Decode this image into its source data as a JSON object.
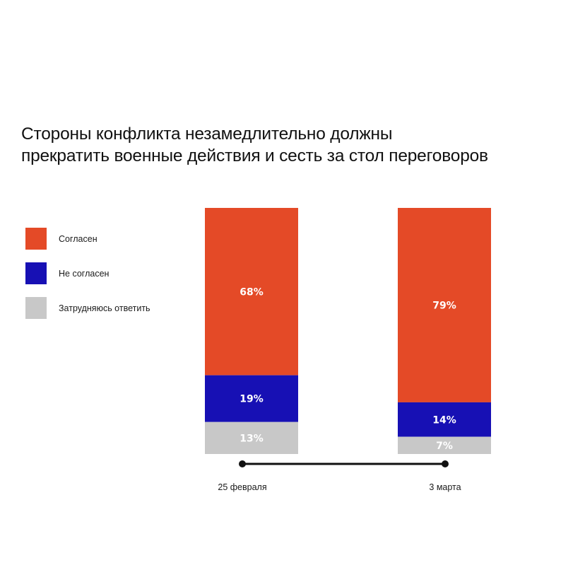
{
  "title_lines": [
    "Стороны конфликта незамедлительно должны",
    "прекратить военные действия и сесть за стол переговоров"
  ],
  "legend": [
    {
      "label": "Согласен",
      "color": "#e44a27"
    },
    {
      "label": "Не согласен",
      "color": "#1710b4"
    },
    {
      "label": "Затрудняюсь ответить",
      "color": "#c8c8c8"
    }
  ],
  "chart_data": {
    "type": "bar",
    "stacked": true,
    "categories": [
      "25 февраля",
      "3 марта"
    ],
    "series": [
      {
        "name": "Согласен",
        "color": "#e44a27",
        "values": [
          68,
          79
        ]
      },
      {
        "name": "Не согласен",
        "color": "#1710b4",
        "values": [
          19,
          14
        ]
      },
      {
        "name": "Затрудняюсь ответить",
        "color": "#c8c8c8",
        "values": [
          13,
          7
        ]
      }
    ],
    "data_labels": [
      [
        "68%",
        "79%"
      ],
      [
        "19%",
        "14%"
      ],
      [
        "13%",
        "7%"
      ]
    ],
    "ylim": [
      0,
      100
    ],
    "legend_position": "left",
    "timeline_color": "#111111"
  }
}
